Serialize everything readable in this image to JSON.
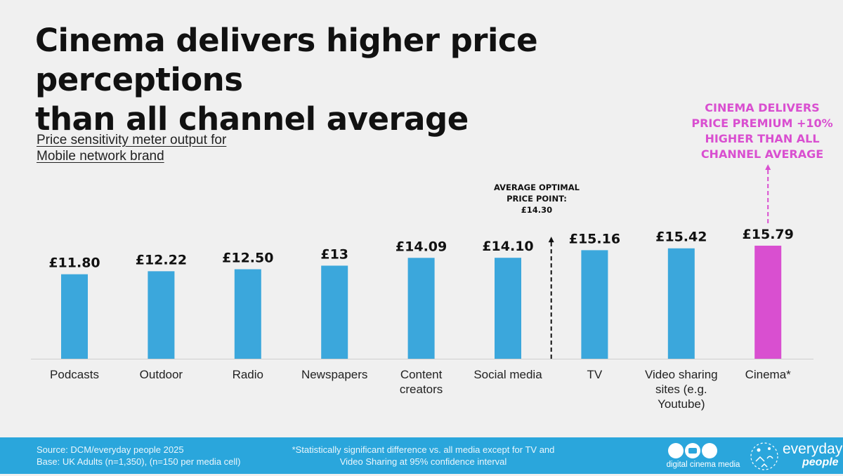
{
  "title": {
    "line1": "Cinema delivers higher price perceptions",
    "line2": "than all channel average"
  },
  "subtitle": {
    "line1": "Price sensitivity meter output for",
    "line2": "Mobile network brand"
  },
  "callout": {
    "lines": [
      "CINEMA DELIVERS",
      "PRICE PREMIUM +10%",
      "HIGHER THAN ALL",
      "CHANNEL AVERAGE"
    ]
  },
  "average_marker": {
    "lines": [
      "AVERAGE OPTIMAL",
      "PRICE POINT:",
      "£14.30"
    ],
    "value": 14.3
  },
  "colors": {
    "bar": "#3ba7dc",
    "highlight": "#d94fd0",
    "footer": "#2aa6dc",
    "background": "#f0f0f0"
  },
  "chart_data": {
    "type": "bar",
    "title": "Price sensitivity meter output for Mobile network brand",
    "xlabel": "",
    "ylabel": "",
    "ylim": [
      0,
      16
    ],
    "grid": false,
    "categories": [
      [
        "Podcasts"
      ],
      [
        "Outdoor"
      ],
      [
        "Radio"
      ],
      [
        "Newspapers"
      ],
      [
        "Content",
        "creators"
      ],
      [
        "Social media"
      ],
      [
        "TV"
      ],
      [
        "Video sharing",
        "sites (e.g.",
        "Youtube)"
      ],
      [
        "Cinema*"
      ]
    ],
    "values": [
      11.8,
      12.22,
      12.5,
      13.0,
      14.09,
      14.1,
      15.16,
      15.42,
      15.79
    ],
    "value_labels": [
      "£11.80",
      "£12.22",
      "£12.50",
      "£13",
      "£14.09",
      "£14.10",
      "£15.16",
      "£15.42",
      "£15.79"
    ],
    "highlight_index": 8,
    "reference_line": {
      "label": "AVERAGE OPTIMAL PRICE POINT: £14.30",
      "value": 14.3,
      "between": [
        "Social media",
        "TV"
      ]
    }
  },
  "footer": {
    "source": "Source: DCM/everyday people 2025",
    "base": "Base: UK Adults (n=1,350), (n=150 per media cell)",
    "note_line1": "*Statistically significant difference vs. all media except for TV and",
    "note_line2": "Video Sharing at 95% confidence interval"
  },
  "logos": {
    "dcm_text": "digital cinema media",
    "ep_word1": "everyday",
    "ep_word2": "people"
  }
}
